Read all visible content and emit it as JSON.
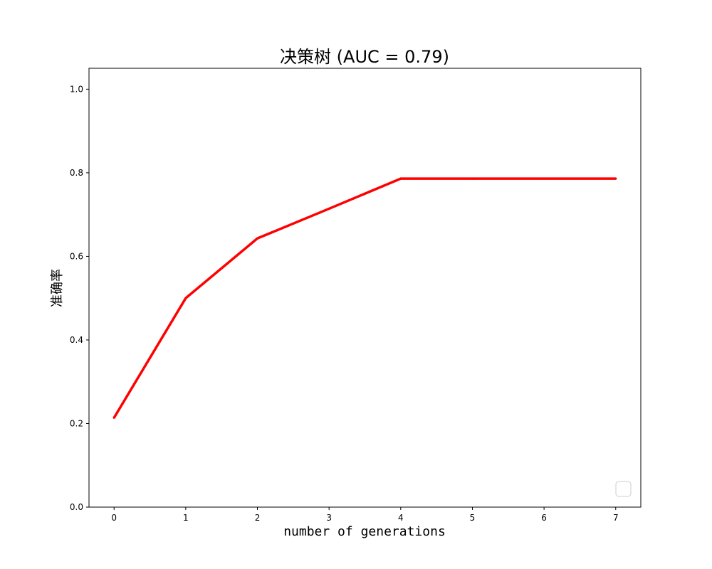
{
  "chart_data": {
    "type": "line",
    "title": "决策树 (AUC = 0.79)",
    "xlabel": "number of generations",
    "ylabel": "准确率",
    "x": [
      0,
      1,
      2,
      3,
      4,
      5,
      6,
      7
    ],
    "series": [
      {
        "values": [
          0.214,
          0.5,
          0.643,
          0.714,
          0.786,
          0.786,
          0.786,
          0.786
        ],
        "color": "#ff0000"
      }
    ],
    "xlim": [
      -0.35,
      7.35
    ],
    "ylim": [
      0.0,
      1.05
    ],
    "xticks": [
      0,
      1,
      2,
      3,
      4,
      5,
      6,
      7
    ],
    "xtick_labels": [
      "0",
      "1",
      "2",
      "3",
      "4",
      "5",
      "6",
      "7"
    ],
    "yticks": [
      0.0,
      0.2,
      0.4,
      0.6,
      0.8,
      1.0
    ],
    "ytick_labels": [
      "0.0",
      "0.2",
      "0.4",
      "0.6",
      "0.8",
      "1.0"
    ],
    "grid": false,
    "legend": {
      "placement": "lower-right",
      "entries": []
    }
  }
}
